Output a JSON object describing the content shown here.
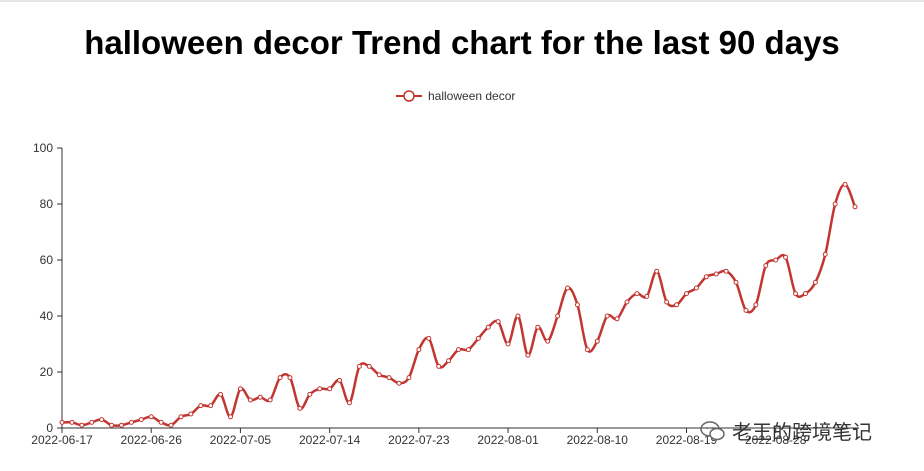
{
  "chart_data": {
    "type": "line",
    "title": "halloween decor Trend chart for the last 90 days",
    "legend": {
      "position": "top-center"
    },
    "series": [
      {
        "name": "halloween decor",
        "color": "#c23531",
        "values": [
          2,
          2,
          1,
          2,
          3,
          1,
          1,
          2,
          3,
          4,
          2,
          1,
          4,
          5,
          8,
          8,
          12,
          4,
          14,
          10,
          11,
          10,
          18,
          18,
          7,
          12,
          14,
          14,
          17,
          9,
          22,
          22,
          19,
          18,
          16,
          18,
          28,
          32,
          22,
          24,
          28,
          28,
          32,
          36,
          38,
          30,
          40,
          26,
          36,
          31,
          40,
          50,
          44,
          28,
          31,
          40,
          39,
          45,
          48,
          47,
          56,
          45,
          44,
          48,
          50,
          54,
          55,
          56,
          52,
          42,
          44,
          58,
          60,
          61,
          48,
          48,
          52,
          62,
          80,
          87,
          79
        ],
        "smooth": true
      }
    ],
    "x_tick_labels": [
      "2022-06-17",
      "2022-06-26",
      "2022-07-05",
      "2022-07-14",
      "2022-07-23",
      "2022-08-01",
      "2022-08-10",
      "2022-08-19",
      "2022-08-28"
    ],
    "y_ticks": [
      0,
      20,
      40,
      60,
      80,
      100
    ],
    "ylim": [
      0,
      100
    ],
    "grid": false
  },
  "watermark": {
    "text": "老王的跨境笔记",
    "icon": "wechat-icon"
  }
}
